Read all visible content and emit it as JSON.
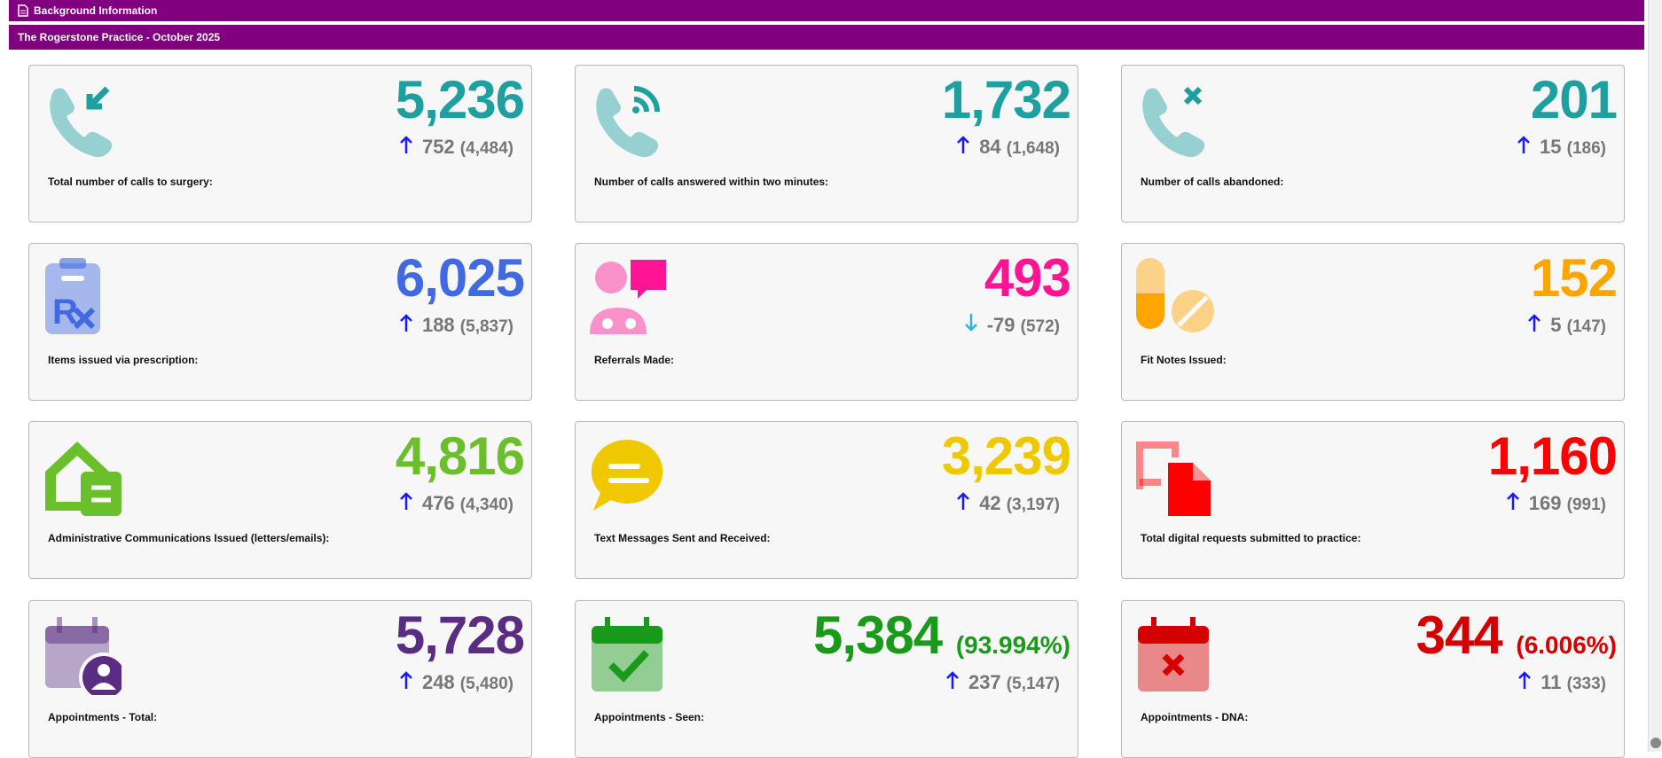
{
  "header": {
    "section": "Background Information",
    "practice": "The Rogerstone Practice - October 2025"
  },
  "cards": [
    {
      "value": "5,236",
      "change": "752",
      "previous": "(4,484)",
      "trend": "up",
      "label": "Total number of calls to surgery:",
      "color": "#1fa0a0"
    },
    {
      "value": "1,732",
      "change": "84",
      "previous": "(1,648)",
      "trend": "up",
      "label": "Number of calls answered within two minutes:",
      "color": "#1fa0a0"
    },
    {
      "value": "201",
      "change": "15",
      "previous": "(186)",
      "trend": "up",
      "label": "Number of calls abandoned:",
      "color": "#1fa0a0"
    },
    {
      "value": "6,025",
      "change": "188",
      "previous": "(5,837)",
      "trend": "up",
      "label": "Items issued via prescription:",
      "color": "#4169e1"
    },
    {
      "value": "493",
      "change": "-79",
      "previous": "(572)",
      "trend": "down",
      "label": "Referrals Made:",
      "color": "#ff1493"
    },
    {
      "value": "152",
      "change": "5",
      "previous": "(147)",
      "trend": "up",
      "label": "Fit Notes Issued:",
      "color": "#ffa500"
    },
    {
      "value": "4,816",
      "change": "476",
      "previous": "(4,340)",
      "trend": "up",
      "label": "Administrative Communications Issued (letters/emails):",
      "color": "#6abf2b"
    },
    {
      "value": "3,239",
      "change": "42",
      "previous": "(3,197)",
      "trend": "up",
      "label": "Text Messages Sent and Received:",
      "color": "#f0c800"
    },
    {
      "value": "1,160",
      "change": "169",
      "previous": "(991)",
      "trend": "up",
      "label": "Total digital requests submitted to practice:",
      "color": "#ff0000"
    },
    {
      "value": "5,728",
      "change": "248",
      "previous": "(5,480)",
      "trend": "up",
      "label": "Appointments - Total:",
      "color": "#5b2d82"
    },
    {
      "value": "5,384",
      "percent": "(93.994%)",
      "change": "237",
      "previous": "(5,147)",
      "trend": "up",
      "label": "Appointments - Seen:",
      "color": "#1a9a1a"
    },
    {
      "value": "344",
      "percent": "(6.006%)",
      "change": "11",
      "previous": "(333)",
      "trend": "up",
      "label": "Appointments - DNA:",
      "color": "#d40000"
    }
  ]
}
